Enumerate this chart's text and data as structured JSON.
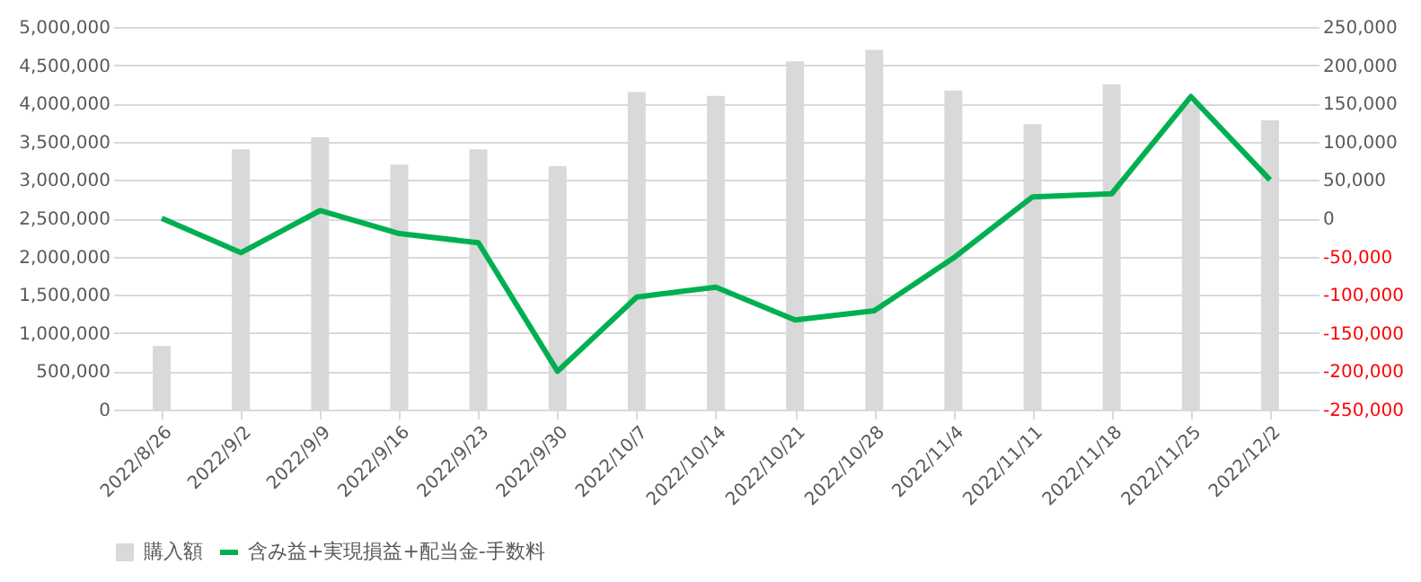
{
  "chart_data": {
    "type": "bar",
    "categories": [
      "2022/8/26",
      "2022/9/2",
      "2022/9/9",
      "2022/9/16",
      "2022/9/23",
      "2022/9/30",
      "2022/10/7",
      "2022/10/14",
      "2022/10/21",
      "2022/10/28",
      "2022/11/4",
      "2022/11/11",
      "2022/11/18",
      "2022/11/25",
      "2022/12/2"
    ],
    "series": [
      {
        "name": "購入額",
        "color": "#d9d9d9",
        "values": [
          830000,
          3400000,
          3560000,
          3200000,
          3400000,
          3180000,
          4150000,
          4100000,
          4550000,
          4700000,
          4170000,
          3730000,
          4250000,
          4000000,
          3780000
        ]
      },
      {
        "name": "含み益+実現損益+配当金-手数料",
        "type": "line",
        "axis": "y2",
        "color": "#00b050",
        "values": [
          0,
          -45000,
          10000,
          -20000,
          -32000,
          -200000,
          -103000,
          -90000,
          -133000,
          -121000,
          -52000,
          28000,
          32000,
          159000,
          50000
        ]
      }
    ],
    "ylim": [
      0,
      5000000
    ],
    "yticks": [
      0,
      {
        "value": 500000,
        "label": "500,000"
      },
      {
        "value": 1000000,
        "label": "1,000,000"
      },
      {
        "value": 1500000,
        "label": "1,500,000"
      },
      {
        "value": 2000000,
        "label": "2,000,000"
      },
      {
        "value": 2500000,
        "label": "2,500,000"
      },
      {
        "value": 3000000,
        "label": "3,000,000"
      },
      {
        "value": 3500000,
        "label": "3,500,000"
      },
      {
        "value": 4000000,
        "label": "4,000,000"
      },
      {
        "value": 4500000,
        "label": "4,500,000"
      },
      {
        "value": 5000000,
        "label": "5,000,000"
      }
    ],
    "y2lim": [
      -250000,
      250000
    ],
    "y2ticks": [
      {
        "value": -250000,
        "label": "-250,000"
      },
      {
        "value": -200000,
        "label": "-200,000"
      },
      {
        "value": -150000,
        "label": "-150,000"
      },
      {
        "value": -100000,
        "label": "-100,000"
      },
      {
        "value": -50000,
        "label": "-50,000"
      },
      0,
      {
        "value": 50000,
        "label": "50,000"
      },
      {
        "value": 100000,
        "label": "100,000"
      },
      {
        "value": 150000,
        "label": "150,000"
      },
      {
        "value": 200000,
        "label": "200,000"
      },
      {
        "value": 250000,
        "label": "250,000"
      }
    ],
    "grid": "y",
    "legend": "bottom",
    "marker": "none",
    "line_style": "solid"
  }
}
